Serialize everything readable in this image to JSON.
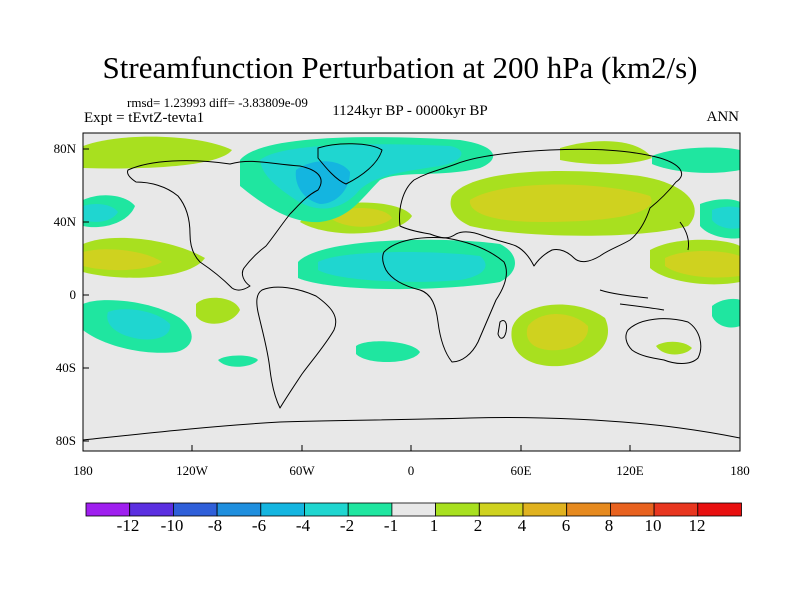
{
  "title": "Streamfunction Perturbation at 200 hPa (km2/s)",
  "stats": "rmsd= 1.23993 diff= -3.83809e-09",
  "experiment": "Expt = tEvtZ-tevta1",
  "period": "1124kyr BP - 0000kyr BP",
  "season": "ANN",
  "lat_ticks": [
    "80N",
    "40N",
    "0",
    "40S",
    "80S"
  ],
  "lon_ticks": [
    "180",
    "120W",
    "60W",
    "0",
    "60E",
    "120E",
    "180"
  ],
  "colorbar": {
    "labels": [
      "-12",
      "-10",
      "-8",
      "-6",
      "-4",
      "-2",
      "-1",
      "1",
      "2",
      "4",
      "6",
      "8",
      "10",
      "12"
    ],
    "colors": [
      "#9f1fef",
      "#5b2fe0",
      "#2f5fd9",
      "#1f8fde",
      "#14b5e0",
      "#1fd6d0",
      "#1fe6a0",
      "#e8e8e8",
      "#a8e01f",
      "#cfd21f",
      "#e0b21f",
      "#e68a1f",
      "#e8621f",
      "#e8361f",
      "#e80f0f"
    ]
  }
}
